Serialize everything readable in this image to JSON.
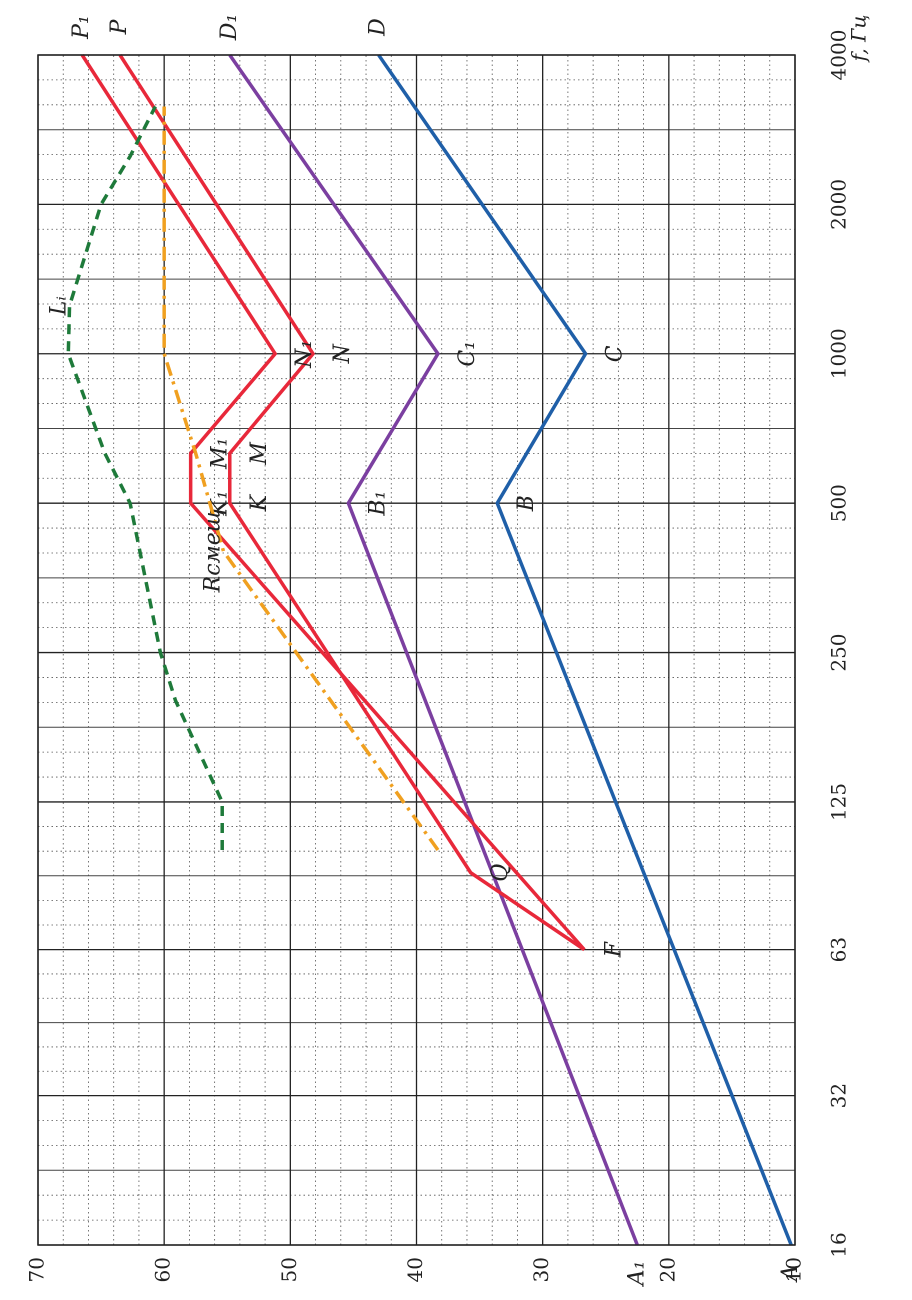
{
  "chart_data": {
    "type": "line",
    "xlabel": "f, Гц",
    "xscale": "log",
    "xlim": [
      16,
      4000
    ],
    "xticks": [
      16,
      32,
      63,
      125,
      250,
      500,
      1000,
      2000,
      4000
    ],
    "ylim": [
      10,
      70
    ],
    "yticks": [
      10,
      20,
      30,
      40,
      50,
      60,
      70
    ],
    "grid": true,
    "series": [
      {
        "color": "#1f5fa8",
        "dash": "solid",
        "x": [
          16,
          500,
          1000,
          4000
        ],
        "values": [
          10.3,
          33.6,
          26.6,
          43.0
        ],
        "point_labels": [
          "A",
          "B",
          "C",
          "D"
        ]
      },
      {
        "color": "#7b3fa0",
        "dash": "solid",
        "x": [
          16,
          500,
          1000,
          4000
        ],
        "values": [
          22.5,
          45.4,
          38.3,
          54.8
        ],
        "point_labels": [
          "A₁",
          "B₁",
          "C₁",
          "D₁"
        ]
      },
      {
        "color": "#e8283a",
        "dash": "solid",
        "x": [
          63,
          90,
          500,
          630,
          1000,
          4000
        ],
        "values": [
          26.7,
          35.7,
          54.8,
          54.8,
          48.2,
          63.5
        ],
        "point_labels": [
          "F",
          "Q",
          "K",
          "M",
          "N",
          "P"
        ]
      },
      {
        "color": "#e8283a",
        "dash": "solid",
        "x": [
          63,
          500,
          630,
          1000,
          4000
        ],
        "values": [
          26.7,
          57.9,
          57.9,
          51.2,
          66.5
        ],
        "point_labels": [
          null,
          "K₁",
          "M₁",
          "N₁",
          "P₁"
        ]
      },
      {
        "name": "Rсмещ",
        "color": "#f0a020",
        "dash": "dashdot",
        "x": [
          100,
          400,
          630,
          1000,
          3150
        ],
        "values": [
          38.3,
          55.3,
          57.5,
          60.0,
          60.0
        ]
      },
      {
        "name": "Lᵢ",
        "color": "#1e7a3a",
        "dash": "dashed",
        "x": [
          100,
          125,
          200,
          250,
          500,
          630,
          1000,
          1250,
          2000,
          2500,
          3150
        ],
        "values": [
          55.4,
          55.4,
          59.1,
          60.3,
          62.7,
          64.7,
          67.6,
          67.5,
          65.0,
          62.7,
          60.7
        ]
      }
    ]
  }
}
